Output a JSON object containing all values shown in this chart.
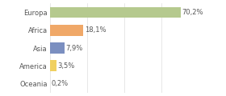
{
  "categories": [
    "Europa",
    "Africa",
    "Asia",
    "America",
    "Oceania"
  ],
  "values": [
    70.2,
    18.1,
    7.9,
    3.5,
    0.2
  ],
  "labels": [
    "70,2%",
    "18,1%",
    "7,9%",
    "3,5%",
    "0,2%"
  ],
  "colors": [
    "#b5c98e",
    "#f0a868",
    "#7b8fc0",
    "#f0d060",
    "#a0c878"
  ],
  "xlim": [
    0,
    78
  ],
  "background_color": "#ffffff",
  "bar_height": 0.6,
  "label_fontsize": 6.0,
  "tick_fontsize": 6.0,
  "grid_color": "#dddddd",
  "text_color": "#555555"
}
